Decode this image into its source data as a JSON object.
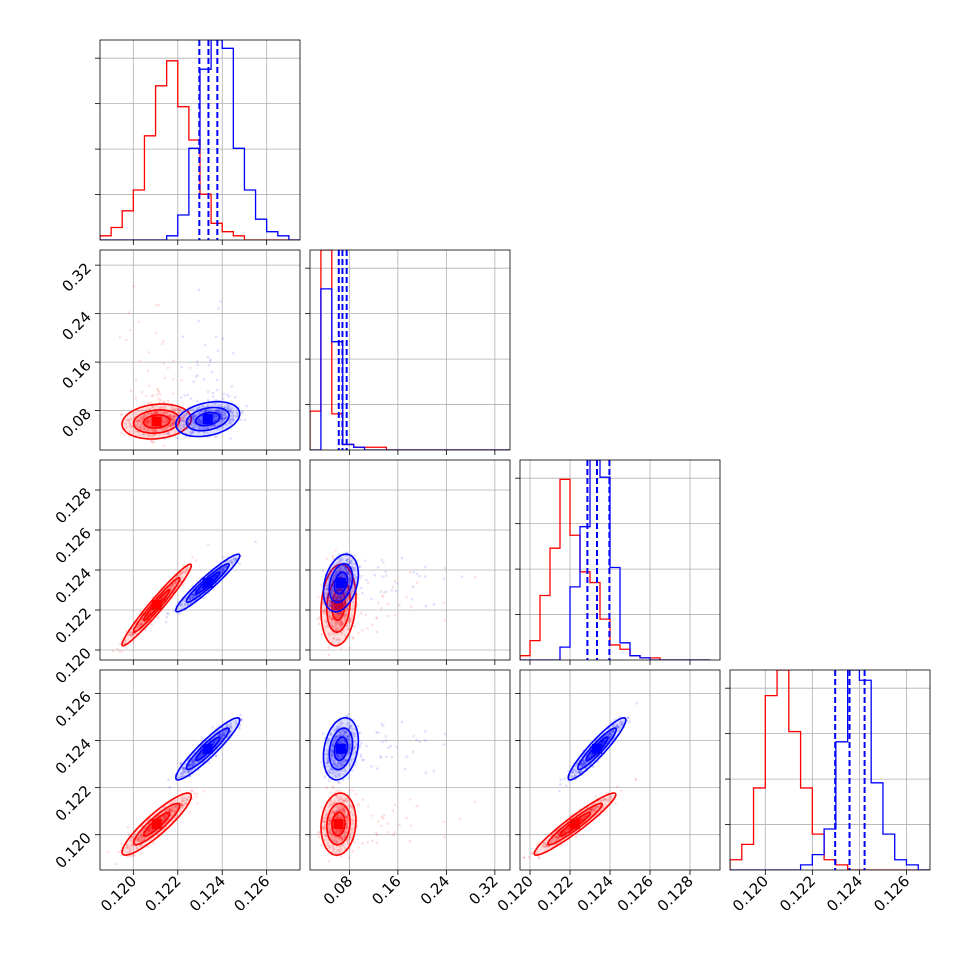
{
  "chart_data": {
    "type": "corner",
    "grid": true,
    "series": [
      {
        "color": "#ff0000"
      },
      {
        "color": "#0000ff"
      }
    ],
    "params": [
      {
        "range": [
          0.1185,
          0.1275
        ],
        "ticks": [
          "0.120",
          "0.122",
          "0.124",
          "0.126"
        ],
        "tick_values": [
          0.12,
          0.122,
          0.124,
          0.126
        ]
      },
      {
        "range": [
          0.015,
          0.345
        ],
        "ticks": [
          "0.08",
          "0.16",
          "0.24",
          "0.32"
        ],
        "tick_values": [
          0.08,
          0.16,
          0.24,
          0.32
        ]
      },
      {
        "range": [
          0.1195,
          0.1295
        ],
        "ticks": [
          "0.120",
          "0.122",
          "0.124",
          "0.126",
          "0.128"
        ],
        "tick_values": [
          0.12,
          0.122,
          0.124,
          0.126,
          0.128
        ]
      },
      {
        "range": [
          0.1185,
          0.127
        ],
        "ticks": [
          "0.120",
          "0.122",
          "0.124",
          "0.126"
        ],
        "tick_values": [
          0.12,
          0.122,
          0.124,
          0.126
        ]
      }
    ],
    "diagonal": [
      {
        "bins": [
          0.1185,
          0.119,
          0.1195,
          0.12,
          0.1205,
          0.121,
          0.1215,
          0.122,
          0.1225,
          0.123,
          0.1235,
          0.124,
          0.1245,
          0.125,
          0.1255,
          0.126,
          0.1265,
          0.127,
          0.1275
        ],
        "red": [
          1,
          3,
          7,
          12,
          25,
          37,
          43,
          32,
          24,
          11,
          4,
          2,
          1,
          0,
          0,
          0,
          0,
          0
        ],
        "blue": [
          0,
          0,
          0,
          0,
          0,
          0,
          1,
          6,
          22,
          41,
          48,
          46,
          22,
          12,
          5,
          2,
          1,
          0
        ],
        "quantiles": [
          0.12297,
          0.12338,
          0.12378
        ]
      },
      {
        "bins": [
          0.015,
          0.033,
          0.051,
          0.069,
          0.087,
          0.105,
          0.123,
          0.141,
          0.159,
          0.177,
          0.195,
          0.213,
          0.231,
          0.249,
          0.267,
          0.285,
          0.303,
          0.321,
          0.345
        ],
        "red": [
          14,
          72,
          13,
          2,
          1,
          1,
          1,
          0,
          0,
          0,
          0,
          0,
          0,
          0,
          0,
          0,
          0,
          0
        ],
        "blue": [
          0,
          58,
          39,
          2,
          1,
          0,
          0,
          0,
          0,
          0,
          0,
          0,
          0,
          0,
          0,
          0,
          0,
          0
        ],
        "quantiles": [
          0.0625,
          0.0685,
          0.0755
        ]
      },
      {
        "bins": [
          0.1195,
          0.12,
          0.1205,
          0.121,
          0.1215,
          0.122,
          0.1225,
          0.123,
          0.1235,
          0.124,
          0.1245,
          0.125,
          0.1255,
          0.126,
          0.1265,
          0.127,
          0.1275,
          0.128,
          0.1285,
          0.129
        ],
        "red": [
          2,
          9,
          30,
          52,
          84,
          58,
          41,
          36,
          19,
          7,
          5,
          2,
          1,
          1,
          0,
          0,
          0,
          0,
          0
        ],
        "blue": [
          0,
          0,
          0,
          0,
          6,
          34,
          62,
          93,
          85,
          43,
          8,
          2,
          1,
          0,
          0,
          0,
          0,
          0,
          0
        ],
        "quantiles": [
          0.12287,
          0.12335,
          0.12397
        ]
      },
      {
        "bins": [
          0.1185,
          0.119,
          0.1195,
          0.12,
          0.1205,
          0.121,
          0.1215,
          0.122,
          0.1225,
          0.123,
          0.1235,
          0.124,
          0.1245,
          0.125,
          0.1255,
          0.126,
          0.1265,
          0.127
        ],
        "red": [
          2,
          5,
          16,
          34,
          39,
          27,
          16,
          7,
          2,
          1,
          0,
          0,
          0,
          0,
          0,
          0,
          0
        ],
        "blue": [
          0,
          0,
          0,
          0,
          0,
          0,
          1,
          3,
          8,
          25,
          39,
          37,
          17,
          7,
          2,
          1,
          0
        ],
        "quantiles": [
          0.12297,
          0.12358,
          0.12422
        ]
      }
    ],
    "correlations": {
      "red": {
        "mean": [
          0.12105,
          0.062,
          0.12225,
          0.12045
        ],
        "sd": [
          0.00065,
          0.012,
          0.00085,
          0.00055
        ],
        "rho": [
          [
            1,
            0.15,
            0.97,
            0.9
          ],
          [
            0.15,
            1,
            0.15,
            0.1
          ],
          [
            0.97,
            0.15,
            1,
            0.95
          ],
          [
            0.9,
            0.1,
            0.95,
            1
          ]
        ]
      },
      "blue": {
        "mean": [
          0.12335,
          0.066,
          0.12335,
          0.12365
        ],
        "sd": [
          0.0006,
          0.012,
          0.0006,
          0.00055
        ],
        "rho": [
          [
            1,
            0.3,
            0.95,
            0.93
          ],
          [
            0.3,
            1,
            0.3,
            0.25
          ],
          [
            0.95,
            0.3,
            1,
            0.93
          ],
          [
            0.93,
            0.25,
            0.93,
            1
          ]
        ]
      }
    }
  }
}
